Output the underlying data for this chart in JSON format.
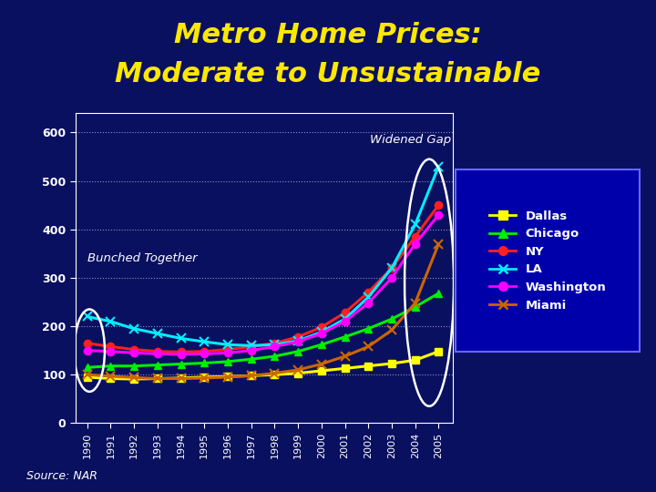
{
  "title_line1": "Metro Home Prices:",
  "title_line2": "Moderate to Unsustainable",
  "title_color": "#FFE800",
  "source_text": "Source: NAR",
  "bg_dark": "#0a1060",
  "years": [
    1990,
    1991,
    1992,
    1993,
    1994,
    1995,
    1996,
    1997,
    1998,
    1999,
    2000,
    2001,
    2002,
    2003,
    2004,
    2005
  ],
  "series_order": [
    "Dallas",
    "Chicago",
    "NY",
    "LA",
    "Washington",
    "Miami"
  ],
  "series": {
    "Dallas": {
      "color": "#FFFF00",
      "marker": "s",
      "markersize": 6,
      "values": [
        95,
        92,
        91,
        92,
        93,
        95,
        96,
        98,
        100,
        103,
        108,
        113,
        118,
        123,
        130,
        148
      ]
    },
    "Chicago": {
      "color": "#00EE00",
      "marker": "^",
      "markersize": 6,
      "values": [
        115,
        118,
        118,
        120,
        122,
        124,
        127,
        132,
        138,
        148,
        162,
        178,
        195,
        215,
        240,
        268
      ]
    },
    "NY": {
      "color": "#FF2020",
      "marker": "o",
      "markersize": 6,
      "values": [
        165,
        158,
        152,
        148,
        147,
        148,
        152,
        158,
        165,
        178,
        198,
        228,
        270,
        320,
        385,
        450
      ]
    },
    "LA": {
      "color": "#00EEFF",
      "marker": "x",
      "markersize": 7,
      "values": [
        220,
        210,
        195,
        185,
        175,
        168,
        162,
        160,
        162,
        170,
        188,
        215,
        260,
        320,
        410,
        530
      ]
    },
    "Washington": {
      "color": "#FF00FF",
      "marker": "o",
      "markersize": 6,
      "values": [
        150,
        148,
        145,
        143,
        142,
        143,
        145,
        150,
        158,
        168,
        185,
        210,
        248,
        300,
        370,
        430
      ]
    },
    "Miami": {
      "color": "#CC6600",
      "marker": "x",
      "markersize": 7,
      "values": [
        100,
        97,
        94,
        92,
        92,
        93,
        95,
        98,
        103,
        110,
        122,
        138,
        158,
        192,
        248,
        370
      ]
    }
  },
  "ylim": [
    0,
    640
  ],
  "yticks": [
    0,
    100,
    200,
    300,
    400,
    500,
    600
  ],
  "annotation_widened": "Widened Gap",
  "annotation_bunched": "Bunched Together",
  "legend_bg": "#0000AA",
  "legend_border": "#6666FF"
}
